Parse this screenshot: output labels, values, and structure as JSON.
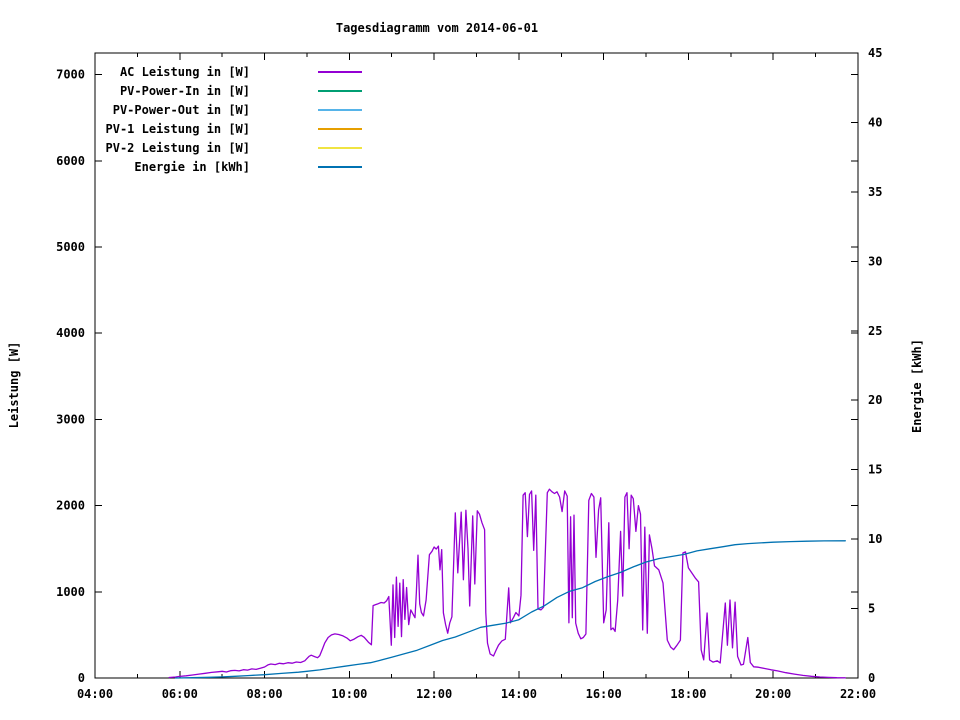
{
  "chart_data": {
    "type": "line",
    "title": "Tagesdiagramm vom 2014-06-01",
    "ylabel": "Leistung [W]",
    "y2label": "Energie [kWh]",
    "grid": false,
    "legend_position": "top-left-inside",
    "x_axis": {
      "unit": "time of day",
      "start_hour": 4,
      "end_hour": 22,
      "major_tick_hours": [
        4,
        6,
        8,
        10,
        12,
        14,
        16,
        18,
        20,
        22
      ],
      "major_tick_labels": [
        "04:00",
        "06:00",
        "08:00",
        "10:00",
        "12:00",
        "14:00",
        "16:00",
        "18:00",
        "20:00",
        "22:00"
      ],
      "minor_tick_hours": [
        5,
        7,
        9,
        11,
        13,
        15,
        17,
        19,
        21
      ]
    },
    "y_axis": {
      "label": "Leistung [W]",
      "min": 0,
      "max": 7250,
      "tick_values": [
        0,
        1000,
        2000,
        3000,
        4000,
        5000,
        6000,
        7000
      ],
      "tick_labels": [
        "0",
        "1000",
        "2000",
        "3000",
        "4000",
        "5000",
        "6000",
        "7000"
      ]
    },
    "y2_axis": {
      "label": "Energie [kWh]",
      "min": 0,
      "max": 45,
      "tick_values": [
        0,
        5,
        10,
        15,
        20,
        25,
        30,
        35,
        40,
        45
      ],
      "tick_labels": [
        "0",
        "5",
        "10",
        "15",
        "20",
        "25",
        "30",
        "35",
        "40",
        "45"
      ]
    },
    "series": [
      {
        "name": "AC Leistung in [W]",
        "color": "#9400D3",
        "axis": "y1",
        "points": [
          [
            5.75,
            6
          ],
          [
            5.9,
            12
          ],
          [
            6.0,
            18
          ],
          [
            6.15,
            25
          ],
          [
            6.3,
            35
          ],
          [
            6.45,
            45
          ],
          [
            6.6,
            55
          ],
          [
            6.75,
            65
          ],
          [
            6.9,
            72
          ],
          [
            7.0,
            78
          ],
          [
            7.1,
            70
          ],
          [
            7.2,
            85
          ],
          [
            7.3,
            88
          ],
          [
            7.4,
            82
          ],
          [
            7.5,
            96
          ],
          [
            7.6,
            92
          ],
          [
            7.7,
            105
          ],
          [
            7.8,
            100
          ],
          [
            7.9,
            112
          ],
          [
            8.0,
            128
          ],
          [
            8.08,
            152
          ],
          [
            8.15,
            162
          ],
          [
            8.25,
            155
          ],
          [
            8.35,
            170
          ],
          [
            8.45,
            165
          ],
          [
            8.55,
            178
          ],
          [
            8.65,
            172
          ],
          [
            8.75,
            186
          ],
          [
            8.85,
            180
          ],
          [
            8.95,
            200
          ],
          [
            9.0,
            225
          ],
          [
            9.05,
            252
          ],
          [
            9.1,
            265
          ],
          [
            9.18,
            248
          ],
          [
            9.25,
            235
          ],
          [
            9.3,
            258
          ],
          [
            9.36,
            330
          ],
          [
            9.42,
            405
          ],
          [
            9.5,
            470
          ],
          [
            9.58,
            500
          ],
          [
            9.66,
            512
          ],
          [
            9.75,
            505
          ],
          [
            9.85,
            488
          ],
          [
            9.95,
            462
          ],
          [
            10.02,
            432
          ],
          [
            10.1,
            448
          ],
          [
            10.2,
            478
          ],
          [
            10.28,
            495
          ],
          [
            10.35,
            472
          ],
          [
            10.45,
            415
          ],
          [
            10.52,
            385
          ],
          [
            10.56,
            840
          ],
          [
            10.62,
            852
          ],
          [
            10.68,
            862
          ],
          [
            10.75,
            876
          ],
          [
            10.82,
            870
          ],
          [
            10.88,
            895
          ],
          [
            10.93,
            945
          ],
          [
            10.99,
            380
          ],
          [
            11.03,
            1080
          ],
          [
            11.07,
            470
          ],
          [
            11.11,
            1170
          ],
          [
            11.15,
            600
          ],
          [
            11.19,
            1100
          ],
          [
            11.23,
            480
          ],
          [
            11.27,
            1140
          ],
          [
            11.31,
            680
          ],
          [
            11.35,
            1050
          ],
          [
            11.4,
            620
          ],
          [
            11.45,
            790
          ],
          [
            11.5,
            745
          ],
          [
            11.55,
            700
          ],
          [
            11.58,
            980
          ],
          [
            11.62,
            1425
          ],
          [
            11.66,
            860
          ],
          [
            11.7,
            760
          ],
          [
            11.75,
            720
          ],
          [
            11.81,
            905
          ],
          [
            11.89,
            1430
          ],
          [
            11.95,
            1470
          ],
          [
            12.0,
            1520
          ],
          [
            12.05,
            1495
          ],
          [
            12.1,
            1530
          ],
          [
            12.14,
            1255
          ],
          [
            12.18,
            1490
          ],
          [
            12.22,
            755
          ],
          [
            12.27,
            620
          ],
          [
            12.32,
            520
          ],
          [
            12.37,
            640
          ],
          [
            12.42,
            710
          ],
          [
            12.5,
            1915
          ],
          [
            12.56,
            1220
          ],
          [
            12.64,
            1925
          ],
          [
            12.69,
            1140
          ],
          [
            12.75,
            1945
          ],
          [
            12.8,
            1500
          ],
          [
            12.84,
            835
          ],
          [
            12.91,
            1880
          ],
          [
            12.96,
            1090
          ],
          [
            13.02,
            1940
          ],
          [
            13.07,
            1900
          ],
          [
            13.13,
            1800
          ],
          [
            13.19,
            1720
          ],
          [
            13.22,
            755
          ],
          [
            13.26,
            405
          ],
          [
            13.32,
            280
          ],
          [
            13.4,
            255
          ],
          [
            13.46,
            320
          ],
          [
            13.52,
            380
          ],
          [
            13.6,
            430
          ],
          [
            13.68,
            450
          ],
          [
            13.76,
            1045
          ],
          [
            13.8,
            640
          ],
          [
            13.87,
            700
          ],
          [
            13.93,
            760
          ],
          [
            14.0,
            720
          ],
          [
            14.05,
            960
          ],
          [
            14.1,
            2120
          ],
          [
            14.15,
            2150
          ],
          [
            14.2,
            1640
          ],
          [
            14.25,
            2130
          ],
          [
            14.3,
            2170
          ],
          [
            14.35,
            1480
          ],
          [
            14.4,
            2120
          ],
          [
            14.45,
            800
          ],
          [
            14.52,
            790
          ],
          [
            14.58,
            820
          ],
          [
            14.67,
            2150
          ],
          [
            14.72,
            2190
          ],
          [
            14.78,
            2160
          ],
          [
            14.84,
            2140
          ],
          [
            14.9,
            2160
          ],
          [
            14.96,
            2100
          ],
          [
            15.02,
            1930
          ],
          [
            15.08,
            2170
          ],
          [
            15.14,
            2110
          ],
          [
            15.18,
            640
          ],
          [
            15.22,
            1870
          ],
          [
            15.26,
            700
          ],
          [
            15.3,
            1890
          ],
          [
            15.34,
            637
          ],
          [
            15.4,
            520
          ],
          [
            15.46,
            455
          ],
          [
            15.52,
            470
          ],
          [
            15.58,
            510
          ],
          [
            15.65,
            2060
          ],
          [
            15.71,
            2140
          ],
          [
            15.77,
            2100
          ],
          [
            15.82,
            1400
          ],
          [
            15.88,
            1950
          ],
          [
            15.93,
            2090
          ],
          [
            16.0,
            640
          ],
          [
            16.06,
            790
          ],
          [
            16.12,
            1800
          ],
          [
            16.17,
            560
          ],
          [
            16.22,
            580
          ],
          [
            16.27,
            540
          ],
          [
            16.33,
            900
          ],
          [
            16.4,
            1700
          ],
          [
            16.45,
            950
          ],
          [
            16.5,
            2100
          ],
          [
            16.55,
            2150
          ],
          [
            16.6,
            1500
          ],
          [
            16.65,
            2120
          ],
          [
            16.7,
            2080
          ],
          [
            16.76,
            1700
          ],
          [
            16.82,
            2000
          ],
          [
            16.87,
            1900
          ],
          [
            16.92,
            557
          ],
          [
            16.97,
            1750
          ],
          [
            17.03,
            520
          ],
          [
            17.08,
            1660
          ],
          [
            17.14,
            1500
          ],
          [
            17.2,
            1300
          ],
          [
            17.3,
            1254
          ],
          [
            17.4,
            1103
          ],
          [
            17.5,
            440
          ],
          [
            17.58,
            360
          ],
          [
            17.65,
            328
          ],
          [
            17.73,
            380
          ],
          [
            17.81,
            440
          ],
          [
            17.87,
            1450
          ],
          [
            17.93,
            1463
          ],
          [
            18.0,
            1277
          ],
          [
            18.08,
            1219
          ],
          [
            18.16,
            1161
          ],
          [
            18.24,
            1115
          ],
          [
            18.3,
            325
          ],
          [
            18.36,
            210
          ],
          [
            18.44,
            754
          ],
          [
            18.5,
            209
          ],
          [
            18.58,
            185
          ],
          [
            18.68,
            200
          ],
          [
            18.75,
            174
          ],
          [
            18.87,
            870
          ],
          [
            18.92,
            380
          ],
          [
            18.98,
            905
          ],
          [
            19.04,
            350
          ],
          [
            19.1,
            880
          ],
          [
            19.16,
            250
          ],
          [
            19.24,
            151
          ],
          [
            19.3,
            160
          ],
          [
            19.4,
            470
          ],
          [
            19.46,
            180
          ],
          [
            19.54,
            130
          ],
          [
            19.65,
            125
          ],
          [
            19.8,
            110
          ],
          [
            19.95,
            95
          ],
          [
            20.1,
            82
          ],
          [
            20.3,
            62
          ],
          [
            20.5,
            45
          ],
          [
            20.7,
            30
          ],
          [
            20.9,
            20
          ],
          [
            21.1,
            12
          ],
          [
            21.3,
            7
          ],
          [
            21.5,
            4
          ],
          [
            21.7,
            2
          ]
        ]
      },
      {
        "name": "PV-Power-In in [W]",
        "color": "#009E73",
        "axis": "y1",
        "points": []
      },
      {
        "name": "PV-Power-Out in [W]",
        "color": "#56B4E9",
        "axis": "y1",
        "points": []
      },
      {
        "name": "PV-1 Leistung in [W]",
        "color": "#E69F00",
        "axis": "y1",
        "points": []
      },
      {
        "name": "PV-2 Leistung in [W]",
        "color": "#F0E442",
        "axis": "y1",
        "points": []
      },
      {
        "name": "Energie in [kWh]",
        "color": "#0072B2",
        "axis": "y2",
        "points": [
          [
            5.9,
            0
          ],
          [
            6.3,
            0.02
          ],
          [
            6.7,
            0.05
          ],
          [
            7.0,
            0.08
          ],
          [
            7.3,
            0.12
          ],
          [
            7.6,
            0.17
          ],
          [
            8.0,
            0.24
          ],
          [
            8.4,
            0.33
          ],
          [
            8.8,
            0.42
          ],
          [
            9.0,
            0.48
          ],
          [
            9.3,
            0.58
          ],
          [
            9.6,
            0.72
          ],
          [
            9.9,
            0.85
          ],
          [
            10.2,
            0.98
          ],
          [
            10.5,
            1.1
          ],
          [
            10.7,
            1.25
          ],
          [
            11.0,
            1.5
          ],
          [
            11.3,
            1.75
          ],
          [
            11.6,
            2.0
          ],
          [
            11.9,
            2.35
          ],
          [
            12.2,
            2.7
          ],
          [
            12.5,
            2.95
          ],
          [
            12.8,
            3.3
          ],
          [
            13.1,
            3.65
          ],
          [
            13.4,
            3.8
          ],
          [
            13.7,
            3.95
          ],
          [
            14.0,
            4.2
          ],
          [
            14.3,
            4.75
          ],
          [
            14.6,
            5.2
          ],
          [
            14.9,
            5.8
          ],
          [
            15.2,
            6.25
          ],
          [
            15.5,
            6.5
          ],
          [
            15.8,
            6.95
          ],
          [
            16.1,
            7.3
          ],
          [
            16.4,
            7.6
          ],
          [
            16.7,
            8.0
          ],
          [
            17.0,
            8.35
          ],
          [
            17.3,
            8.6
          ],
          [
            17.6,
            8.75
          ],
          [
            17.9,
            8.9
          ],
          [
            18.2,
            9.15
          ],
          [
            18.5,
            9.3
          ],
          [
            18.8,
            9.45
          ],
          [
            19.1,
            9.6
          ],
          [
            19.4,
            9.68
          ],
          [
            19.7,
            9.73
          ],
          [
            20.0,
            9.78
          ],
          [
            20.4,
            9.82
          ],
          [
            20.8,
            9.85
          ],
          [
            21.2,
            9.87
          ],
          [
            21.7,
            9.88
          ]
        ]
      }
    ]
  },
  "colors": {
    "background": "#ffffff",
    "border": "#000000",
    "text": "#000000"
  }
}
